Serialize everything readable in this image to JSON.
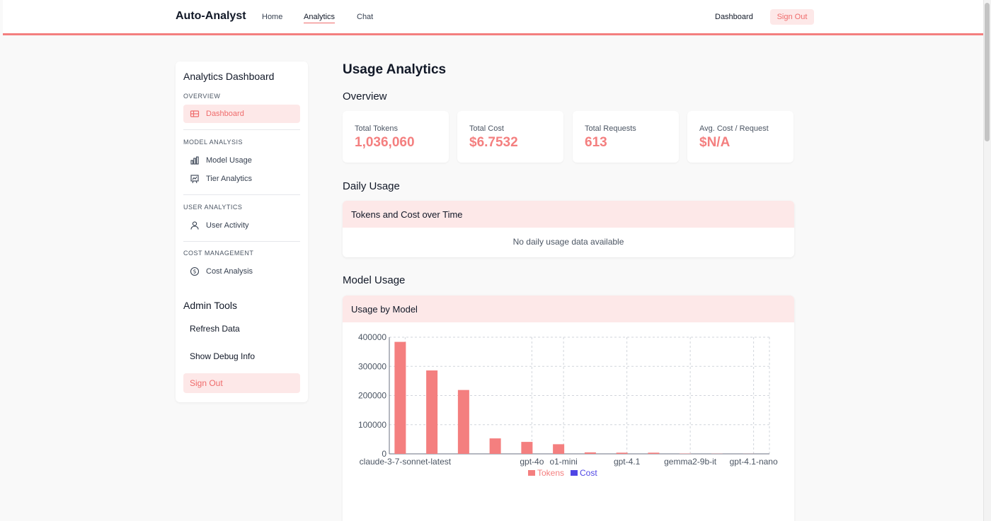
{
  "nav": {
    "brand": "Auto-Analyst",
    "links": [
      "Home",
      "Analytics",
      "Chat"
    ],
    "dashboard": "Dashboard",
    "signout": "Sign Out"
  },
  "sidebar": {
    "title": "Analytics Dashboard",
    "sections": [
      {
        "label": "OVERVIEW",
        "items": [
          {
            "label": "Dashboard",
            "icon": "table-icon",
            "active": true
          }
        ]
      },
      {
        "label": "MODEL ANALYSIS",
        "items": [
          {
            "label": "Model Usage",
            "icon": "bar-chart-icon"
          },
          {
            "label": "Tier Analytics",
            "icon": "presentation-chart-icon"
          }
        ]
      },
      {
        "label": "USER ANALYTICS",
        "items": [
          {
            "label": "User Activity",
            "icon": "users-icon"
          }
        ]
      },
      {
        "label": "COST MANAGEMENT",
        "items": [
          {
            "label": "Cost Analysis",
            "icon": "dollar-circle-icon"
          }
        ]
      }
    ],
    "admin_title": "Admin Tools",
    "admin_buttons": [
      "Refresh Data",
      "Show Debug Info",
      "Sign Out"
    ]
  },
  "main": {
    "title": "Usage Analytics",
    "overview_title": "Overview",
    "stats": [
      {
        "label": "Total Tokens",
        "value": "1,036,060"
      },
      {
        "label": "Total Cost",
        "value": "$6.7532"
      },
      {
        "label": "Total Requests",
        "value": "613"
      },
      {
        "label": "Avg. Cost / Request",
        "value": "$N/A"
      }
    ],
    "daily_title": "Daily Usage",
    "daily_panel_title": "Tokens and Cost over Time",
    "daily_empty": "No daily usage data available",
    "model_title": "Model Usage",
    "model_panel_title": "Usage by Model"
  },
  "colors": {
    "accent": "#f47f7f",
    "accent_bg": "#fde8e8",
    "cost": "#4f46e5"
  },
  "chart_data": {
    "type": "bar",
    "categories": [
      "claude-3-7-sonnet-latest",
      "",
      "",
      "",
      "gpt-4o",
      "o1-mini",
      "",
      "gpt-4.1",
      "",
      "gemma2-9b-it",
      "",
      "gpt-4.1-nano"
    ],
    "series": [
      {
        "name": "Tokens",
        "values": [
          384000,
          286000,
          219000,
          53000,
          41000,
          33000,
          5000,
          4000,
          4000,
          1000,
          500,
          300
        ]
      },
      {
        "name": "Cost",
        "values": [
          3,
          2,
          1,
          0.5,
          0.2,
          0.05,
          0.001,
          0.001,
          0.001,
          0,
          0,
          0
        ]
      }
    ],
    "yticks": [
      "0",
      "100000",
      "200000",
      "300000",
      "400000"
    ],
    "ylim": [
      0,
      400000
    ],
    "grid": true,
    "legend": "bottom"
  }
}
